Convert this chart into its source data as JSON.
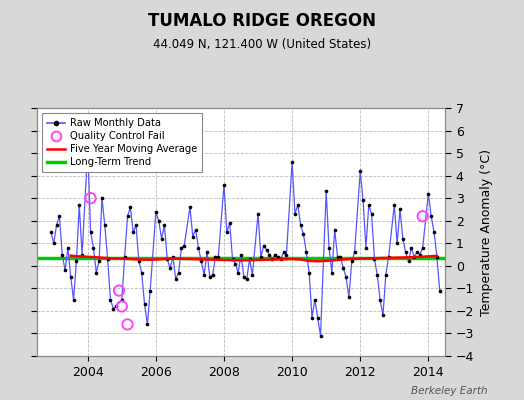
{
  "title": "TUMALO RIDGE OREGON",
  "subtitle": "44.049 N, 121.400 W (United States)",
  "ylabel": "Temperature Anomaly (°C)",
  "credit": "Berkeley Earth",
  "ylim": [
    -4,
    7
  ],
  "yticks": [
    -4,
    -3,
    -2,
    -1,
    0,
    1,
    2,
    3,
    4,
    5,
    6,
    7
  ],
  "xlim": [
    2002.5,
    2014.5
  ],
  "xticks": [
    2004,
    2006,
    2008,
    2010,
    2012,
    2014
  ],
  "background_color": "#d8d8d8",
  "plot_bg_color": "#ffffff",
  "long_term_trend_value": 0.35,
  "long_term_trend_color": "#00cc00",
  "moving_avg_color": "#ff0000",
  "raw_line_color": "#5555ff",
  "raw_dot_color": "#000000",
  "qc_fail_color": "#ff44ff",
  "times": [
    2002.917,
    2003.0,
    2003.083,
    2003.167,
    2003.25,
    2003.333,
    2003.417,
    2003.5,
    2003.583,
    2003.667,
    2003.75,
    2003.833,
    2004.0,
    2004.083,
    2004.167,
    2004.25,
    2004.333,
    2004.417,
    2004.5,
    2004.583,
    2004.667,
    2004.75,
    2004.833,
    2005.0,
    2005.083,
    2005.167,
    2005.25,
    2005.333,
    2005.417,
    2005.5,
    2005.583,
    2005.667,
    2005.75,
    2005.833,
    2006.0,
    2006.083,
    2006.167,
    2006.25,
    2006.333,
    2006.417,
    2006.5,
    2006.583,
    2006.667,
    2006.75,
    2006.833,
    2007.0,
    2007.083,
    2007.167,
    2007.25,
    2007.333,
    2007.417,
    2007.5,
    2007.583,
    2007.667,
    2007.75,
    2007.833,
    2008.0,
    2008.083,
    2008.167,
    2008.25,
    2008.333,
    2008.417,
    2008.5,
    2008.583,
    2008.667,
    2008.75,
    2008.833,
    2009.0,
    2009.083,
    2009.167,
    2009.25,
    2009.333,
    2009.417,
    2009.5,
    2009.583,
    2009.667,
    2009.75,
    2009.833,
    2010.0,
    2010.083,
    2010.167,
    2010.25,
    2010.333,
    2010.417,
    2010.5,
    2010.583,
    2010.667,
    2010.75,
    2010.833,
    2011.0,
    2011.083,
    2011.167,
    2011.25,
    2011.333,
    2011.417,
    2011.5,
    2011.583,
    2011.667,
    2011.75,
    2011.833,
    2012.0,
    2012.083,
    2012.167,
    2012.25,
    2012.333,
    2012.417,
    2012.5,
    2012.583,
    2012.667,
    2012.75,
    2012.833,
    2013.0,
    2013.083,
    2013.167,
    2013.25,
    2013.333,
    2013.417,
    2013.5,
    2013.583,
    2013.667,
    2013.75,
    2013.833,
    2014.0,
    2014.083,
    2014.167,
    2014.25,
    2014.333
  ],
  "values": [
    1.5,
    1.0,
    1.8,
    2.2,
    0.5,
    -0.2,
    0.8,
    -0.5,
    -1.5,
    0.2,
    2.7,
    0.5,
    5.2,
    1.5,
    0.8,
    -0.3,
    0.2,
    3.0,
    1.8,
    0.3,
    -1.5,
    -1.9,
    -1.8,
    -1.5,
    0.4,
    2.2,
    2.6,
    1.5,
    1.8,
    0.2,
    -0.3,
    -1.7,
    -2.6,
    -1.1,
    2.4,
    2.0,
    1.2,
    1.8,
    0.3,
    -0.1,
    0.4,
    -0.6,
    -0.3,
    0.8,
    0.9,
    2.6,
    1.3,
    1.6,
    0.8,
    0.2,
    -0.4,
    0.6,
    -0.5,
    -0.4,
    0.4,
    0.4,
    3.6,
    1.5,
    1.9,
    0.3,
    0.1,
    -0.3,
    0.5,
    -0.5,
    -0.6,
    0.3,
    -0.4,
    2.3,
    0.4,
    0.9,
    0.7,
    0.5,
    0.3,
    0.5,
    0.4,
    0.3,
    0.6,
    0.5,
    4.6,
    2.3,
    2.7,
    1.8,
    1.4,
    0.6,
    -0.3,
    -2.3,
    -1.5,
    -2.3,
    -3.1,
    3.3,
    0.8,
    -0.3,
    1.6,
    0.4,
    0.4,
    -0.1,
    -0.5,
    -1.4,
    0.2,
    0.6,
    4.2,
    2.9,
    0.8,
    2.7,
    2.3,
    0.3,
    -0.4,
    -1.5,
    -2.2,
    -0.4,
    0.4,
    2.7,
    1.0,
    2.5,
    1.2,
    0.6,
    0.2,
    0.8,
    0.4,
    0.6,
    0.5,
    0.8,
    3.2,
    2.2,
    1.5,
    0.4,
    -1.1
  ],
  "qc_times": [
    2004.083,
    2004.917,
    2005.0,
    2005.167,
    2013.833
  ],
  "qc_vals": [
    3.0,
    -1.1,
    -1.8,
    -2.6,
    2.2
  ],
  "ma_times": [
    2003.5,
    2003.75,
    2004.0,
    2004.25,
    2004.5,
    2004.75,
    2005.0,
    2005.25,
    2005.5,
    2005.75,
    2006.0,
    2006.25,
    2006.5,
    2006.75,
    2007.0,
    2007.25,
    2007.5,
    2007.75,
    2008.0,
    2008.25,
    2008.5,
    2008.75,
    2009.0,
    2009.25,
    2009.5,
    2009.75,
    2010.0,
    2010.25,
    2010.5,
    2010.75,
    2011.0,
    2011.25,
    2011.5,
    2011.75,
    2012.0,
    2012.25,
    2012.5,
    2012.75,
    2013.0,
    2013.25,
    2013.5,
    2013.75,
    2014.0,
    2014.25
  ],
  "ma_vals": [
    0.45,
    0.42,
    0.4,
    0.38,
    0.35,
    0.33,
    0.32,
    0.3,
    0.28,
    0.27,
    0.28,
    0.3,
    0.32,
    0.31,
    0.3,
    0.29,
    0.28,
    0.27,
    0.26,
    0.25,
    0.24,
    0.25,
    0.26,
    0.27,
    0.28,
    0.29,
    0.3,
    0.28,
    0.22,
    0.2,
    0.22,
    0.25,
    0.28,
    0.3,
    0.32,
    0.33,
    0.34,
    0.35,
    0.36,
    0.37,
    0.38,
    0.4,
    0.42,
    0.44
  ]
}
